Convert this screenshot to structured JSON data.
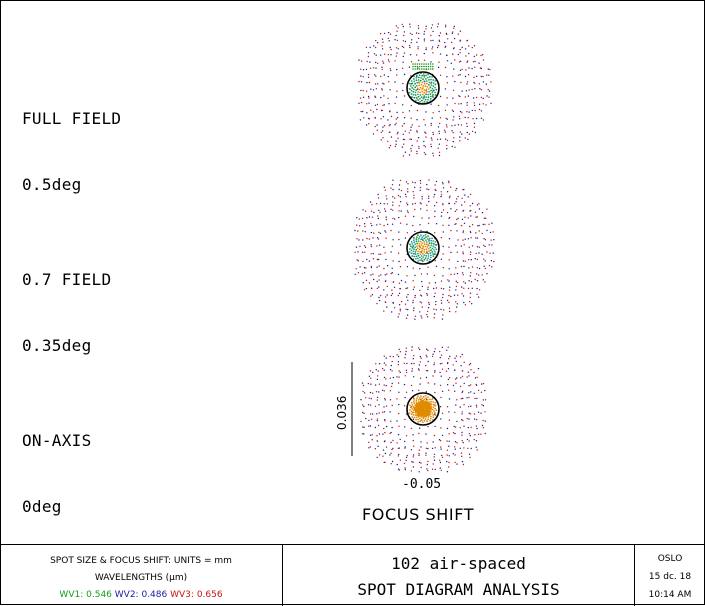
{
  "fields": [
    {
      "name": "FULL FIELD",
      "angle": "0.5deg"
    },
    {
      "name": "0.7 FIELD",
      "angle": "0.35deg"
    },
    {
      "name": "ON-AXIS",
      "angle": "0deg"
    }
  ],
  "scale_bar_label": "0.036",
  "focus_shift_value": "-0.05",
  "focus_shift_label": "FOCUS SHIFT",
  "footer": {
    "units": "SPOT SIZE & FOCUS SHIFT: UNITS = mm",
    "wavelengths_label": "WAVELENGTHS (μm)",
    "wavelengths": [
      {
        "label": "WV1:",
        "value": "0.546",
        "color": "#1a9a1a"
      },
      {
        "label": "WV2:",
        "value": "0.486",
        "color": "#1a1aa0"
      },
      {
        "label": "WV3:",
        "value": "0.656",
        "color": "#d01010"
      }
    ],
    "title": "102 air-spaced",
    "subtitle": "SPOT DIAGRAM ANALYSIS",
    "program": "OSLO",
    "date": "15 dc. 18",
    "time": "10:14 AM"
  },
  "colors": {
    "red": "#d01010",
    "blue": "#1a1aa0",
    "green": "#1a9a1a",
    "orange": "#e08a00",
    "cyan": "#20a0a0"
  }
}
